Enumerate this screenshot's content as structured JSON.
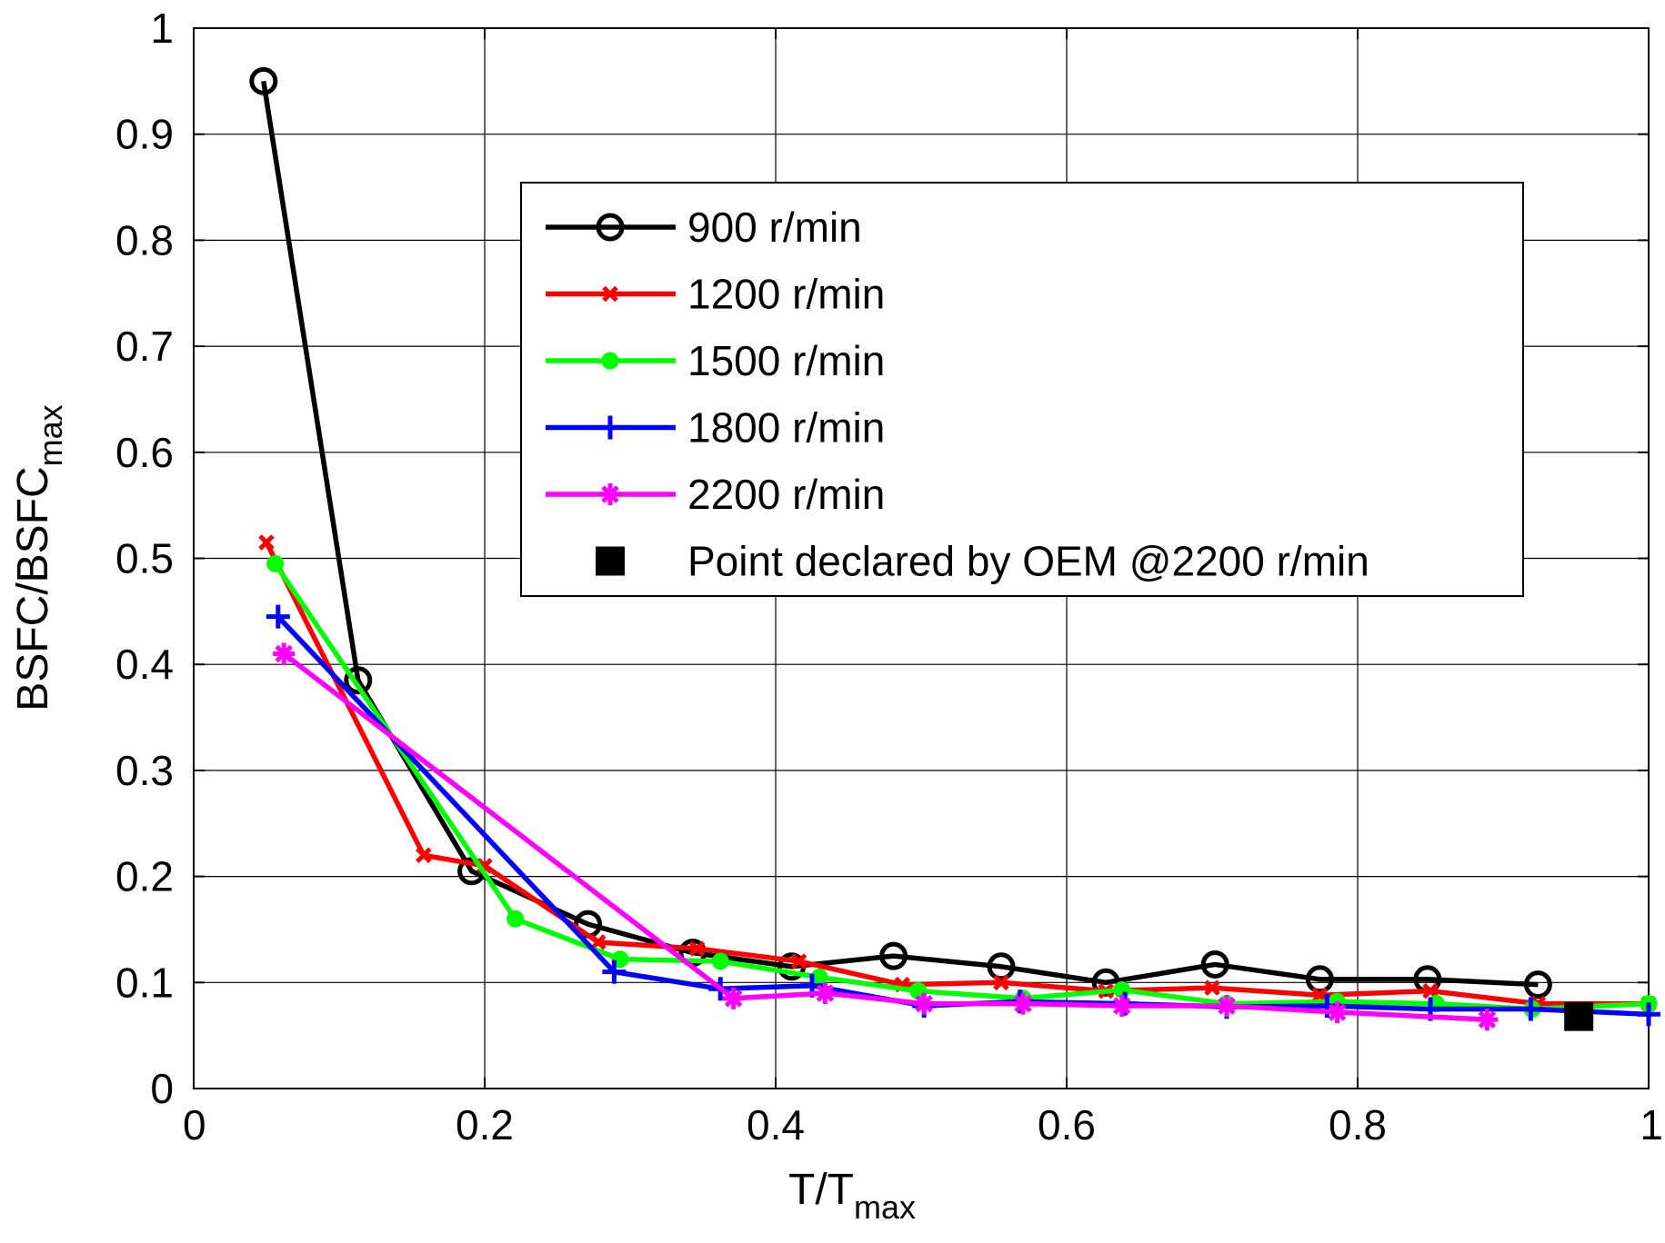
{
  "chart_data": {
    "type": "line",
    "title": "",
    "xlabel": "T/T",
    "xlabel_sub": "max",
    "ylabel": "BSFC/BSFC",
    "ylabel_sub": "max",
    "xlim": [
      0,
      1
    ],
    "ylim": [
      0,
      1
    ],
    "xticks": [
      0,
      0.2,
      0.4,
      0.6,
      0.8,
      1
    ],
    "yticks": [
      0,
      0.1,
      0.2,
      0.3,
      0.4,
      0.5,
      0.6,
      0.7,
      0.8,
      0.9,
      1
    ],
    "xtick_labels": [
      "0",
      "0.2",
      "0.4",
      "0.6",
      "0.8",
      "1"
    ],
    "ytick_labels": [
      "0",
      "0.1",
      "0.2",
      "0.3",
      "0.4",
      "0.5",
      "0.6",
      "0.7",
      "0.8",
      "0.9",
      "1"
    ],
    "grid": true,
    "legend_position": "upper-center",
    "series": [
      {
        "name": "900 r/min",
        "color": "#000000",
        "marker": "circle",
        "x": [
          0.048,
          0.113,
          0.191,
          0.271,
          0.343,
          0.411,
          0.481,
          0.555,
          0.627,
          0.702,
          0.774,
          0.848,
          0.924
        ],
        "y": [
          0.95,
          0.385,
          0.205,
          0.155,
          0.128,
          0.115,
          0.125,
          0.115,
          0.1,
          0.117,
          0.103,
          0.103,
          0.098
        ]
      },
      {
        "name": "1200 r/min",
        "color": "#ff0000",
        "marker": "x",
        "x": [
          0.05,
          0.158,
          0.2,
          0.278,
          0.346,
          0.416,
          0.487,
          0.555,
          0.627,
          0.7,
          0.774,
          0.85,
          0.924,
          1.0
        ],
        "y": [
          0.515,
          0.22,
          0.21,
          0.138,
          0.132,
          0.12,
          0.098,
          0.1,
          0.092,
          0.095,
          0.088,
          0.092,
          0.08,
          0.08
        ]
      },
      {
        "name": "1500 r/min",
        "color": "#00ff00",
        "marker": "dot",
        "x": [
          0.056,
          0.221,
          0.293,
          0.362,
          0.43,
          0.498,
          0.57,
          0.638,
          0.71,
          0.786,
          0.854,
          0.92,
          1.0
        ],
        "y": [
          0.495,
          0.16,
          0.122,
          0.12,
          0.105,
          0.092,
          0.085,
          0.093,
          0.08,
          0.082,
          0.08,
          0.075,
          0.08
        ]
      },
      {
        "name": "1800 r/min",
        "color": "#0000ff",
        "marker": "plus",
        "x": [
          0.058,
          0.289,
          0.362,
          0.425,
          0.502,
          0.568,
          0.64,
          0.71,
          0.779,
          0.85,
          0.919,
          1.0
        ],
        "y": [
          0.445,
          0.11,
          0.094,
          0.097,
          0.078,
          0.082,
          0.08,
          0.077,
          0.078,
          0.075,
          0.075,
          0.07
        ]
      },
      {
        "name": "2200 r/min",
        "color": "#ff00ff",
        "marker": "star",
        "x": [
          0.062,
          0.371,
          0.434,
          0.502,
          0.57,
          0.638,
          0.71,
          0.786,
          0.889
        ],
        "y": [
          0.41,
          0.085,
          0.09,
          0.08,
          0.08,
          0.078,
          0.078,
          0.072,
          0.065
        ]
      },
      {
        "name": "Point declared by OEM @2200 r/min",
        "color": "#000000",
        "marker": "square",
        "line": false,
        "x": [
          0.952
        ],
        "y": [
          0.068
        ]
      }
    ]
  }
}
